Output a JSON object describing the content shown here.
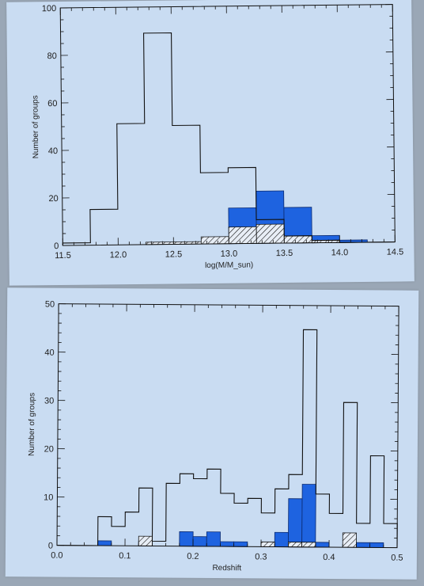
{
  "chart_data": [
    {
      "type": "bar",
      "title": "",
      "xlabel": "log(M/M_sun)",
      "ylabel": "Number of groups",
      "xlim": [
        11.5,
        14.5
      ],
      "ylim": [
        0,
        100
      ],
      "xticks": [
        11.5,
        12.0,
        12.5,
        13.0,
        13.5,
        14.0,
        14.5
      ],
      "xtick_labels": [
        "11.5",
        "12.0",
        "12.5",
        "13.0",
        "13.5",
        "14.0",
        "14.5"
      ],
      "yticks": [
        0,
        20,
        40,
        60,
        80,
        100
      ],
      "ytick_labels": [
        "0",
        "20",
        "40",
        "60",
        "80",
        "100"
      ],
      "bin_edges": [
        11.5,
        11.75,
        12.0,
        12.25,
        12.5,
        12.75,
        13.0,
        13.25,
        13.5,
        13.75,
        14.0,
        14.25,
        14.5
      ],
      "series": [
        {
          "style": "outline",
          "values": [
            1,
            15,
            51,
            89,
            50,
            30,
            32,
            10,
            3,
            1,
            0,
            0
          ]
        },
        {
          "style": "filled-blue",
          "values": [
            0,
            0,
            0,
            0,
            0,
            0,
            15,
            22,
            15,
            3,
            1,
            0
          ]
        },
        {
          "style": "hatched",
          "values": [
            0,
            0,
            0,
            1,
            1,
            3,
            7,
            8,
            3,
            1,
            0,
            0
          ]
        }
      ],
      "colors": {
        "blue": "#1e63e0",
        "outline": "#111111"
      },
      "grid": false
    },
    {
      "type": "bar",
      "title": "",
      "xlabel": "Redshift",
      "ylabel": "Number of groups",
      "xlim": [
        0.0,
        0.5
      ],
      "ylim": [
        0,
        50
      ],
      "xticks": [
        0.0,
        0.1,
        0.2,
        0.3,
        0.4,
        0.5
      ],
      "xtick_labels": [
        "0.0",
        "0.1",
        "0.2",
        "0.3",
        "0.4",
        "0.5"
      ],
      "yticks": [
        0,
        10,
        20,
        30,
        40,
        50
      ],
      "ytick_labels": [
        "0",
        "10",
        "20",
        "30",
        "40",
        "50"
      ],
      "bin_edges": [
        0.0,
        0.02,
        0.04,
        0.06,
        0.08,
        0.1,
        0.12,
        0.14,
        0.16,
        0.18,
        0.2,
        0.22,
        0.24,
        0.26,
        0.28,
        0.3,
        0.32,
        0.34,
        0.36,
        0.38,
        0.4,
        0.42,
        0.44,
        0.46,
        0.48,
        0.5
      ],
      "series": [
        {
          "style": "outline",
          "values": [
            0,
            0,
            0,
            6,
            4,
            7,
            12,
            1,
            13,
            15,
            14,
            16,
            11,
            9,
            10,
            7,
            12,
            15,
            45,
            11,
            7,
            30,
            5,
            19,
            5
          ]
        },
        {
          "style": "filled-blue",
          "values": [
            0,
            0,
            0,
            1,
            0,
            0,
            1,
            0,
            0,
            3,
            2,
            3,
            1,
            1,
            0,
            0,
            3,
            10,
            13,
            1,
            0,
            0,
            1,
            1,
            0
          ]
        },
        {
          "style": "hatched",
          "values": [
            0,
            0,
            0,
            0,
            0,
            0,
            2,
            0,
            0,
            0,
            0,
            0,
            0,
            0,
            0,
            1,
            0,
            1,
            1,
            0,
            0,
            3,
            0,
            0,
            0
          ]
        }
      ],
      "colors": {
        "blue": "#1e63e0",
        "outline": "#111111"
      },
      "grid": false
    }
  ]
}
